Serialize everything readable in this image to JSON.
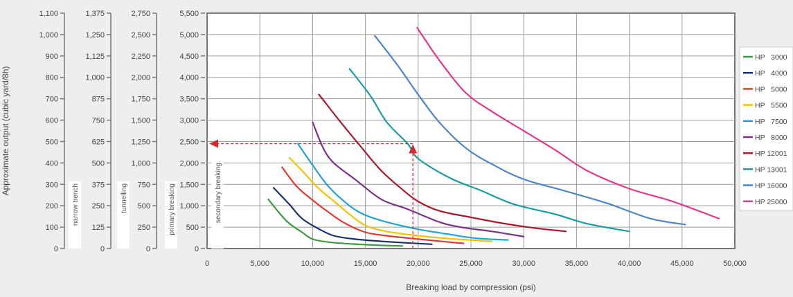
{
  "chart_data": {
    "type": "line",
    "xlabel": "Breaking load by compression (psi)",
    "ylabel": "Approximate output (cubic yard/8h)",
    "xlim": [
      0,
      50000
    ],
    "x_ticks": [
      "0",
      "5,000",
      "10,000",
      "15,000",
      "20,000",
      "25,000",
      "30,000",
      "35,000",
      "40,000",
      "45,000",
      "50,000"
    ],
    "grid": true,
    "legend_position": "right",
    "y_axes": [
      {
        "range": [
          0,
          1100
        ],
        "ticks": [
          "0",
          "100",
          "200",
          "300",
          "400",
          "500",
          "600",
          "700",
          "800",
          "900",
          "1,000",
          "1,100"
        ]
      },
      {
        "range": [
          0,
          1375
        ],
        "ticks": [
          "0",
          "125",
          "250",
          "375",
          "500",
          "625",
          "750",
          "875",
          "1,000",
          "1,125",
          "1,250",
          "1,375"
        ],
        "label": "narrow trench"
      },
      {
        "range": [
          0,
          2750
        ],
        "ticks": [
          "0",
          "250",
          "500",
          "750",
          "1,000",
          "1,250",
          "1,500",
          "1,750",
          "2,000",
          "2,250",
          "2,500",
          "2,750"
        ],
        "label": "tunnelling"
      },
      {
        "range": [
          0,
          5500
        ],
        "ticks": [
          "0",
          "500",
          "1,000",
          "1,500",
          "2,000",
          "2,500",
          "3,000",
          "3,500",
          "4,000",
          "4,500",
          "5,000",
          "5,500"
        ],
        "label": "primary breaking"
      }
    ],
    "inner_label": "secondary breaking",
    "example_guide": {
      "x": 19500,
      "y": 2450,
      "color": "#d9262e"
    },
    "series": [
      {
        "name": "HP   3000",
        "color": "#3b9a3d",
        "points": [
          [
            5800,
            1150
          ],
          [
            7500,
            650
          ],
          [
            9000,
            380
          ],
          [
            10000,
            220
          ],
          [
            11500,
            150
          ],
          [
            13500,
            110
          ],
          [
            16000,
            80
          ],
          [
            18500,
            60
          ]
        ]
      },
      {
        "name": "HP   4000",
        "color": "#1b2f6e",
        "points": [
          [
            6300,
            1420
          ],
          [
            7800,
            1030
          ],
          [
            9000,
            700
          ],
          [
            10500,
            470
          ],
          [
            12000,
            300
          ],
          [
            14000,
            220
          ],
          [
            17000,
            160
          ],
          [
            21300,
            100
          ]
        ]
      },
      {
        "name": "HP   5000",
        "color": "#e03a2f",
        "points": [
          [
            7100,
            1900
          ],
          [
            8500,
            1450
          ],
          [
            10000,
            1130
          ],
          [
            11500,
            850
          ],
          [
            13000,
            600
          ],
          [
            15000,
            380
          ],
          [
            17000,
            300
          ],
          [
            20000,
            220
          ],
          [
            24300,
            120
          ]
        ]
      },
      {
        "name": "HP   5500",
        "color": "#f5c200",
        "points": [
          [
            7800,
            2120
          ],
          [
            9000,
            1820
          ],
          [
            10500,
            1420
          ],
          [
            12000,
            1110
          ],
          [
            13500,
            800
          ],
          [
            15000,
            540
          ],
          [
            17000,
            400
          ],
          [
            20000,
            300
          ],
          [
            23000,
            230
          ],
          [
            27000,
            170
          ]
        ]
      },
      {
        "name": "HP   7500",
        "color": "#1fa3d6",
        "points": [
          [
            8600,
            2450
          ],
          [
            10000,
            1950
          ],
          [
            11500,
            1450
          ],
          [
            13500,
            1000
          ],
          [
            15000,
            780
          ],
          [
            17000,
            620
          ],
          [
            20000,
            450
          ],
          [
            23000,
            330
          ],
          [
            25500,
            240
          ],
          [
            28500,
            200
          ]
        ]
      },
      {
        "name": "HP   8000",
        "color": "#7b2f86",
        "points": [
          [
            10000,
            2950
          ],
          [
            11000,
            2350
          ],
          [
            12000,
            2000
          ],
          [
            14000,
            1620
          ],
          [
            16500,
            1150
          ],
          [
            19000,
            920
          ],
          [
            22000,
            620
          ],
          [
            24000,
            500
          ],
          [
            27000,
            400
          ],
          [
            30000,
            280
          ]
        ]
      },
      {
        "name": "HP 12001",
        "color": "#a8192e",
        "points": [
          [
            10600,
            3600
          ],
          [
            12500,
            3000
          ],
          [
            14500,
            2400
          ],
          [
            16500,
            1820
          ],
          [
            18500,
            1380
          ],
          [
            20000,
            1100
          ],
          [
            22000,
            880
          ],
          [
            25000,
            730
          ],
          [
            28000,
            590
          ],
          [
            31000,
            480
          ],
          [
            34000,
            400
          ]
        ]
      },
      {
        "name": "HP 13001",
        "color": "#179ca0",
        "points": [
          [
            13500,
            4200
          ],
          [
            15500,
            3560
          ],
          [
            17000,
            2960
          ],
          [
            19000,
            2450
          ],
          [
            20000,
            2100
          ],
          [
            23000,
            1650
          ],
          [
            26000,
            1350
          ],
          [
            29000,
            1040
          ],
          [
            33000,
            800
          ],
          [
            36000,
            580
          ],
          [
            40000,
            400
          ]
        ]
      },
      {
        "name": "HP 16000",
        "color": "#4a86c5",
        "points": [
          [
            15900,
            4970
          ],
          [
            18000,
            4300
          ],
          [
            20000,
            3600
          ],
          [
            22000,
            2950
          ],
          [
            24500,
            2350
          ],
          [
            27000,
            1970
          ],
          [
            30000,
            1620
          ],
          [
            34000,
            1340
          ],
          [
            38000,
            1050
          ],
          [
            42000,
            700
          ],
          [
            45300,
            560
          ]
        ]
      },
      {
        "name": "HP 25000",
        "color": "#e0388a",
        "points": [
          [
            19900,
            5160
          ],
          [
            22000,
            4400
          ],
          [
            24500,
            3640
          ],
          [
            27000,
            3200
          ],
          [
            30000,
            2750
          ],
          [
            33000,
            2300
          ],
          [
            36000,
            1820
          ],
          [
            40000,
            1400
          ],
          [
            44000,
            1110
          ],
          [
            48500,
            700
          ]
        ]
      }
    ]
  }
}
